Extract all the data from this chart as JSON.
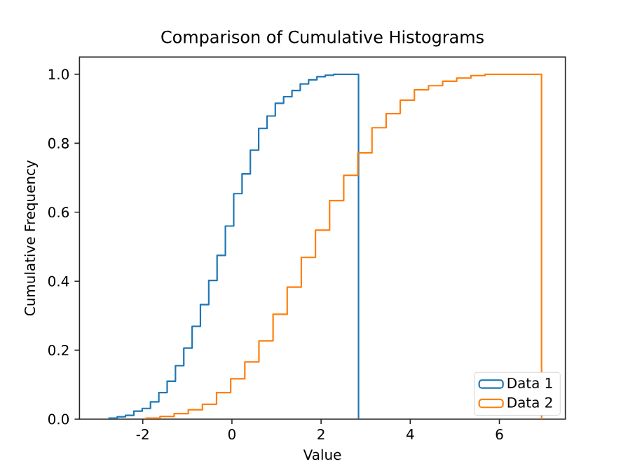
{
  "chart_data": {
    "type": "step",
    "title": "Comparison of Cumulative Histograms",
    "xlabel": "Value",
    "ylabel": "Cumulative Frequency",
    "xlim": [
      -3.42,
      7.48
    ],
    "ylim": [
      0,
      1.05
    ],
    "xticks": [
      -2,
      0,
      2,
      4,
      6
    ],
    "yticks": [
      {
        "value": 0,
        "label": "0.0"
      },
      {
        "value": 0.2,
        "label": "0.2"
      },
      {
        "value": 0.4,
        "label": "0.4"
      },
      {
        "value": 0.6,
        "label": "0.6"
      },
      {
        "value": 0.8,
        "label": "0.8"
      },
      {
        "value": 1.0,
        "label": "1.0"
      }
    ],
    "legend": "bottom right",
    "series": [
      {
        "name": "Data 1",
        "color": "#1f77b4",
        "x": [
          -2.76,
          -2.76,
          -2.573,
          -2.387,
          -2.2,
          -2.013,
          -1.827,
          -1.64,
          -1.453,
          -1.267,
          -1.08,
          -0.893,
          -0.707,
          -0.52,
          -0.333,
          -0.147,
          0.04,
          0.227,
          0.413,
          0.6,
          0.787,
          0.973,
          1.16,
          1.347,
          1.533,
          1.72,
          1.907,
          2.093,
          2.28,
          2.467,
          2.653,
          2.84
        ],
        "values": [
          0,
          0.003,
          0.007,
          0.011,
          0.023,
          0.031,
          0.05,
          0.077,
          0.11,
          0.155,
          0.206,
          0.269,
          0.332,
          0.402,
          0.475,
          0.56,
          0.654,
          0.711,
          0.78,
          0.843,
          0.879,
          0.916,
          0.935,
          0.953,
          0.972,
          0.984,
          0.993,
          0.997,
          1.0,
          1.0,
          1.0,
          0
        ]
      },
      {
        "name": "Data 2",
        "color": "#ff7f0e",
        "x": [
          -1.93,
          -1.93,
          -1.613,
          -1.296,
          -0.979,
          -0.662,
          -0.345,
          -0.028,
          0.289,
          0.606,
          0.923,
          1.24,
          1.557,
          1.874,
          2.191,
          2.508,
          2.825,
          3.142,
          3.459,
          3.776,
          4.093,
          4.41,
          4.727,
          5.044,
          5.361,
          5.678,
          5.995,
          6.312,
          6.629,
          6.946
        ],
        "values": [
          0,
          0.003,
          0.008,
          0.016,
          0.027,
          0.043,
          0.077,
          0.117,
          0.166,
          0.227,
          0.304,
          0.383,
          0.469,
          0.548,
          0.634,
          0.707,
          0.772,
          0.845,
          0.886,
          0.925,
          0.955,
          0.967,
          0.98,
          0.989,
          0.996,
          1.0,
          1.0,
          1.0,
          1.0,
          0
        ]
      }
    ]
  }
}
